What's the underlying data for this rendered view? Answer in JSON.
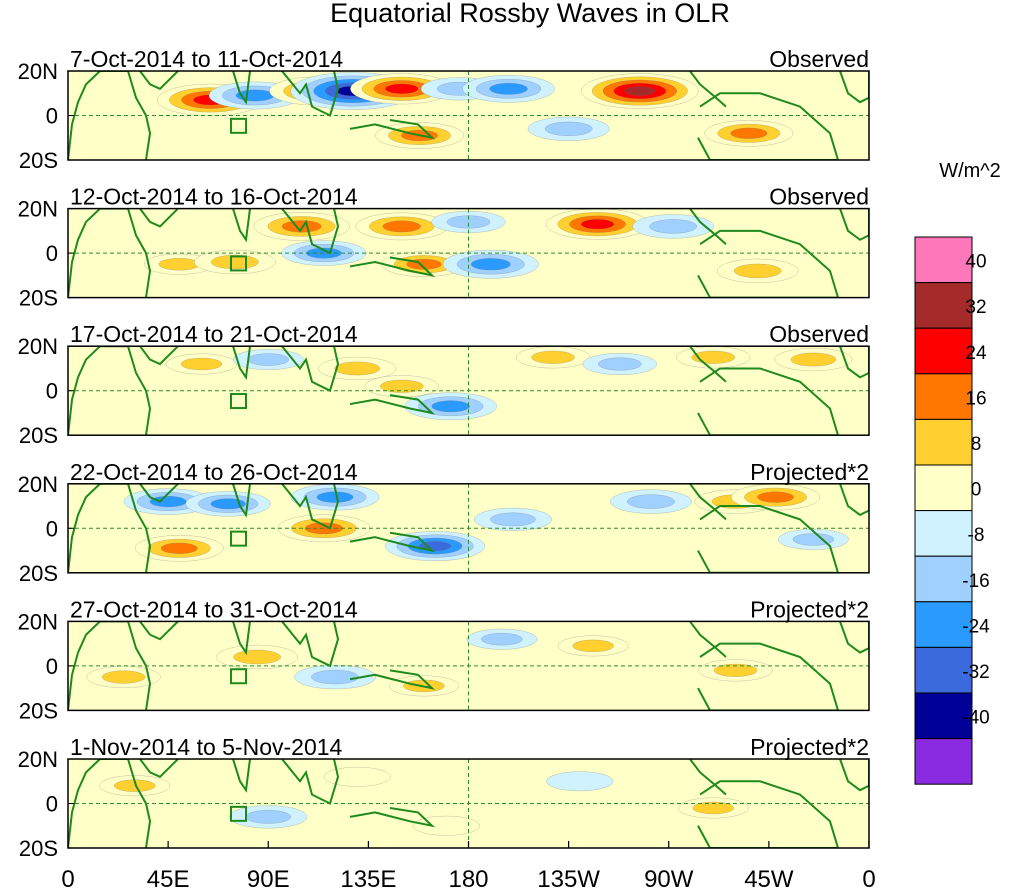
{
  "chart_data": {
    "type": "heatmap",
    "title": "Equatorial Rossby Waves in OLR",
    "units": "W/m^2",
    "xlabel": "",
    "ylabel": "",
    "x_ticks": [
      "0",
      "45E",
      "90E",
      "135E",
      "180",
      "135W",
      "90W",
      "45W",
      "0"
    ],
    "y_ticks": [
      "20N",
      "0",
      "20S"
    ],
    "colorbar": {
      "levels": [
        "40",
        "32",
        "24",
        "16",
        "8",
        "0",
        "-8",
        "-16",
        "-24",
        "-32",
        "-40"
      ],
      "colors": [
        "#ff77bb",
        "#a52a2a",
        "#ff0000",
        "#ff7700",
        "#ffd030",
        "#ffffc8",
        "#d0f2ff",
        "#a0d0ff",
        "#2a9aff",
        "#3a6adc",
        "#000099",
        "#8a2be2"
      ]
    },
    "panels": [
      {
        "date_range": "7-Oct-2014 to 11-Oct-2014",
        "label": "Observed",
        "anomalies": [
          {
            "lon": 64,
            "lat": 7,
            "value": 28
          },
          {
            "lon": 84,
            "lat": 9,
            "value": -20
          },
          {
            "lon": 112,
            "lat": 11,
            "value": 22
          },
          {
            "lon": 128,
            "lat": 11,
            "value": -38
          },
          {
            "lon": 150,
            "lat": 12,
            "value": 26
          },
          {
            "lon": 158,
            "lat": -9,
            "value": 18
          },
          {
            "lon": 176,
            "lat": 12,
            "value": -12
          },
          {
            "lon": 198,
            "lat": 12,
            "value": -20
          },
          {
            "lon": 225,
            "lat": -6,
            "value": -14
          },
          {
            "lon": 257,
            "lat": 11,
            "value": 34
          },
          {
            "lon": 306,
            "lat": -8,
            "value": 18
          }
        ]
      },
      {
        "date_range": "12-Oct-2014 to 16-Oct-2014",
        "label": "Observed",
        "anomalies": [
          {
            "lon": 50,
            "lat": -5,
            "value": 8
          },
          {
            "lon": 75,
            "lat": -4,
            "value": 14
          },
          {
            "lon": 105,
            "lat": 12,
            "value": 22
          },
          {
            "lon": 115,
            "lat": 0,
            "value": -16
          },
          {
            "lon": 150,
            "lat": 12,
            "value": 20
          },
          {
            "lon": 160,
            "lat": -5,
            "value": 16
          },
          {
            "lon": 180,
            "lat": 14,
            "value": -10
          },
          {
            "lon": 190,
            "lat": -5,
            "value": -22
          },
          {
            "lon": 238,
            "lat": 13,
            "value": 26
          },
          {
            "lon": 272,
            "lat": 12,
            "value": -14
          },
          {
            "lon": 310,
            "lat": -8,
            "value": 14
          }
        ]
      },
      {
        "date_range": "17-Oct-2014 to 21-Oct-2014",
        "label": "Observed",
        "anomalies": [
          {
            "lon": 60,
            "lat": 12,
            "value": 8
          },
          {
            "lon": 90,
            "lat": 14,
            "value": -8
          },
          {
            "lon": 130,
            "lat": 10,
            "value": 12
          },
          {
            "lon": 150,
            "lat": 2,
            "value": 10
          },
          {
            "lon": 172,
            "lat": -7,
            "value": -20
          },
          {
            "lon": 218,
            "lat": 15,
            "value": 10
          },
          {
            "lon": 248,
            "lat": 12,
            "value": -10
          },
          {
            "lon": 290,
            "lat": 15,
            "value": 10
          },
          {
            "lon": 335,
            "lat": 14,
            "value": 12
          }
        ]
      },
      {
        "date_range": "22-Oct-2014 to 26-Oct-2014",
        "label": "Projected*2",
        "anomalies": [
          {
            "lon": 45,
            "lat": 12,
            "value": -18
          },
          {
            "lon": 50,
            "lat": -9,
            "value": 18
          },
          {
            "lon": 72,
            "lat": 11,
            "value": -16
          },
          {
            "lon": 115,
            "lat": 0,
            "value": 20
          },
          {
            "lon": 120,
            "lat": 14,
            "value": -18
          },
          {
            "lon": 165,
            "lat": -8,
            "value": -24
          },
          {
            "lon": 200,
            "lat": 4,
            "value": -12
          },
          {
            "lon": 262,
            "lat": 12,
            "value": -14
          },
          {
            "lon": 300,
            "lat": 12,
            "value": 14
          },
          {
            "lon": 318,
            "lat": 14,
            "value": 18
          },
          {
            "lon": 335,
            "lat": -5,
            "value": -8
          }
        ]
      },
      {
        "date_range": "27-Oct-2014 to 31-Oct-2014",
        "label": "Projected*2",
        "anomalies": [
          {
            "lon": 25,
            "lat": -5,
            "value": 10
          },
          {
            "lon": 85,
            "lat": 4,
            "value": 14
          },
          {
            "lon": 120,
            "lat": -5,
            "value": -14
          },
          {
            "lon": 160,
            "lat": -9,
            "value": 8
          },
          {
            "lon": 195,
            "lat": 12,
            "value": -8
          },
          {
            "lon": 236,
            "lat": 9,
            "value": 8
          },
          {
            "lon": 300,
            "lat": -2,
            "value": 10
          }
        ]
      },
      {
        "date_range": "1-Nov-2014 to 5-Nov-2014",
        "label": "Projected*2",
        "anomalies": [
          {
            "lon": 30,
            "lat": 8,
            "value": 8
          },
          {
            "lon": 90,
            "lat": -6,
            "value": -12
          },
          {
            "lon": 130,
            "lat": 12,
            "value": 6
          },
          {
            "lon": 170,
            "lat": -10,
            "value": 6
          },
          {
            "lon": 230,
            "lat": 10,
            "value": -6
          },
          {
            "lon": 290,
            "lat": -2,
            "value": 8
          }
        ]
      }
    ]
  }
}
